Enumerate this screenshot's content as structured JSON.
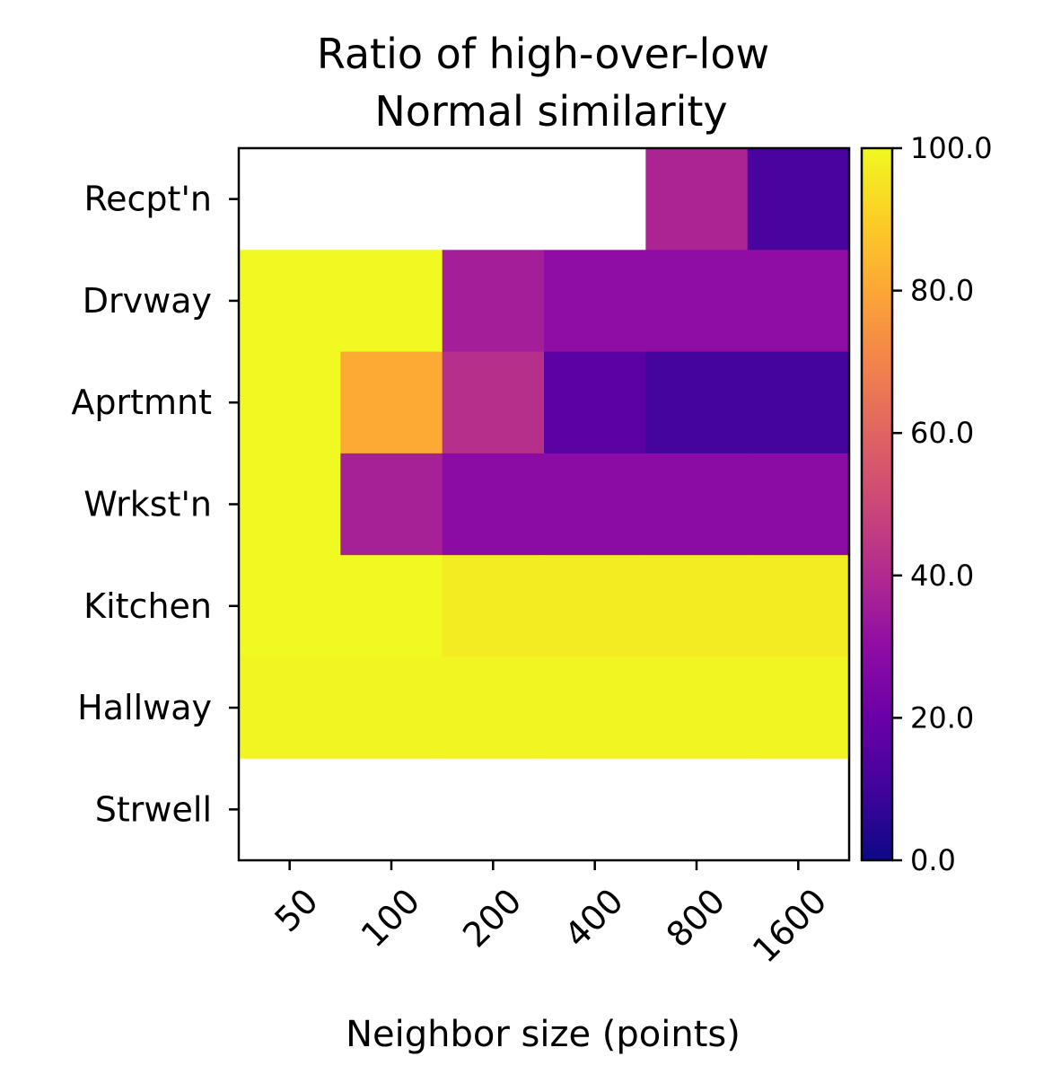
{
  "chart_data": {
    "type": "heatmap",
    "title": "Ratio of high-over-low Normal similarity",
    "title_lines": [
      "Ratio of high-over-low",
      "Normal similarity"
    ],
    "xlabel": "Neighbor size (points)",
    "ylabel": "",
    "x_categories": [
      "50",
      "100",
      "200",
      "400",
      "800",
      "1600"
    ],
    "y_categories": [
      "Recpt'n",
      "Drvway",
      "Aprtmnt",
      "Wrkst'n",
      "Kitchen",
      "Hallway",
      "Strwell"
    ],
    "values": [
      [
        null,
        null,
        null,
        null,
        38,
        12
      ],
      [
        100,
        100,
        36,
        30,
        30,
        30
      ],
      [
        100,
        81,
        42,
        16,
        11,
        11
      ],
      [
        100,
        37,
        29,
        29,
        29,
        29
      ],
      [
        100,
        100,
        97,
        97,
        97,
        97
      ],
      [
        99,
        99,
        99,
        99,
        99,
        99
      ],
      [
        null,
        null,
        null,
        null,
        null,
        null
      ]
    ],
    "colormap": "plasma",
    "colorbar": {
      "range": [
        0,
        100
      ],
      "ticks": [
        "0.0",
        "20.0",
        "40.0",
        "60.0",
        "80.0",
        "100.0"
      ]
    },
    "missing_color": "#ffffff",
    "grid": false
  }
}
